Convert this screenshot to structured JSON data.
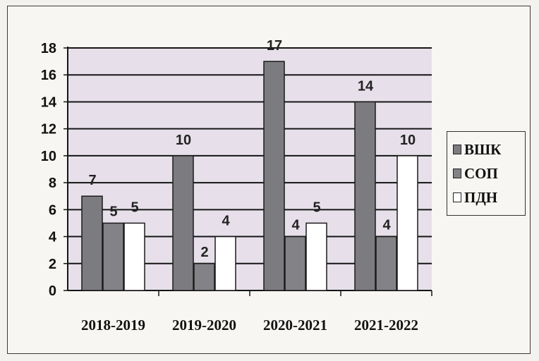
{
  "chart_data": {
    "type": "bar",
    "categories": [
      "2018-2019",
      "2019-2020",
      "2020-2021",
      "2021-2022"
    ],
    "series": [
      {
        "name": "ВШК",
        "values": [
          7,
          10,
          17,
          14
        ],
        "color": "#7c7c80"
      },
      {
        "name": "СОП",
        "values": [
          5,
          2,
          4,
          4
        ],
        "color": "#838387"
      },
      {
        "name": "ПДН",
        "values": [
          5,
          4,
          5,
          10
        ],
        "color": "#ffffff"
      }
    ],
    "data_labels": [
      [
        "7",
        "10",
        "17",
        "14"
      ],
      [
        "5",
        "2",
        "4",
        "4"
      ],
      [
        "5",
        "4",
        "5",
        "10"
      ]
    ],
    "yticks": [
      "0",
      "2",
      "4",
      "6",
      "8",
      "10",
      "12",
      "14",
      "16",
      "18"
    ],
    "ylim": [
      0,
      18
    ],
    "title": "",
    "xlabel": "",
    "ylabel": "",
    "grid": true,
    "legend_position": "right",
    "plot_background": "#e7e0ea"
  }
}
